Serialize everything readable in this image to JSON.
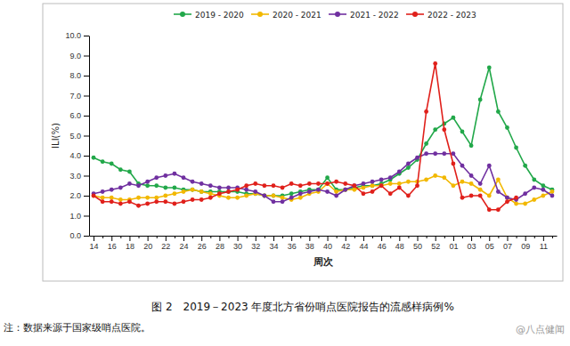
{
  "chart_data": {
    "type": "line",
    "title": "图 2　2019－2023 年度北方省份哨点医院报告的流感样病例%",
    "note": "注：数据来源于国家级哨点医院。",
    "watermark": "@八点健闻",
    "x_label": "周次",
    "y_label": "ILI(%)",
    "categories": [
      "14",
      null,
      "16",
      null,
      "18",
      null,
      "20",
      null,
      "22",
      null,
      "24",
      null,
      "26",
      null,
      "28",
      null,
      "30",
      null,
      "32",
      null,
      "34",
      null,
      "36",
      null,
      "38",
      null,
      "40",
      null,
      "42",
      null,
      "44",
      null,
      "46",
      null,
      "48",
      null,
      "50",
      null,
      "52",
      null,
      "01",
      null,
      "03",
      null,
      "05",
      null,
      "07",
      null,
      "09",
      null,
      "11",
      null
    ],
    "series": [
      {
        "name": "2019 - 2020",
        "color": "#22a84a",
        "marker": "circle",
        "line_style": "solid",
        "values": [
          3.9,
          3.7,
          3.6,
          3.3,
          3.2,
          2.6,
          2.5,
          2.5,
          2.4,
          2.4,
          2.3,
          2.3,
          2.2,
          2.2,
          2.2,
          2.2,
          2.2,
          2.1,
          2.1,
          2.0,
          2.0,
          2.0,
          2.1,
          2.2,
          2.3,
          2.3,
          2.9,
          2.3,
          2.3,
          2.4,
          2.5,
          2.5,
          2.6,
          2.8,
          3.1,
          3.4,
          3.8,
          4.6,
          5.3,
          5.6,
          5.9,
          5.2,
          4.5,
          6.8,
          8.4,
          6.2,
          5.4,
          4.4,
          3.5,
          2.8,
          2.5,
          2.3
        ]
      },
      {
        "name": "2020 - 2021",
        "color": "#f2b800",
        "marker": "circle",
        "line_style": "solid",
        "values": [
          2.0,
          1.9,
          1.9,
          1.8,
          1.8,
          1.9,
          1.9,
          1.9,
          2.0,
          2.1,
          2.2,
          2.3,
          2.2,
          2.1,
          2.0,
          1.9,
          1.9,
          2.0,
          2.1,
          2.0,
          2.0,
          1.9,
          1.8,
          1.9,
          2.1,
          2.2,
          2.6,
          2.2,
          2.3,
          2.3,
          2.4,
          2.5,
          2.5,
          2.6,
          2.6,
          2.7,
          2.7,
          2.8,
          3.0,
          2.9,
          2.5,
          2.7,
          2.6,
          2.3,
          2.0,
          2.8,
          1.9,
          1.6,
          1.6,
          1.8,
          2.0,
          2.2
        ]
      },
      {
        "name": "2021 - 2022",
        "color": "#7030a0",
        "marker": "circle",
        "line_style": "solid",
        "values": [
          2.1,
          2.2,
          2.3,
          2.4,
          2.6,
          2.5,
          2.7,
          2.9,
          3.0,
          3.1,
          2.9,
          2.7,
          2.6,
          2.5,
          2.4,
          2.4,
          2.4,
          2.3,
          2.2,
          2.0,
          1.7,
          1.7,
          1.9,
          2.1,
          2.2,
          2.3,
          2.2,
          2.0,
          2.3,
          2.5,
          2.6,
          2.7,
          2.8,
          2.9,
          3.2,
          3.6,
          3.9,
          4.1,
          4.1,
          4.1,
          4.1,
          3.5,
          3.0,
          2.6,
          3.5,
          2.2,
          1.9,
          1.8,
          2.1,
          2.4,
          2.3,
          2.0
        ]
      },
      {
        "name": "2022 - 2023",
        "color": "#e0201b",
        "marker": "circle",
        "line_style": "solid",
        "values": [
          2.0,
          1.7,
          1.7,
          1.6,
          1.7,
          1.5,
          1.6,
          1.7,
          1.7,
          1.6,
          1.7,
          1.8,
          1.8,
          1.9,
          2.1,
          2.2,
          2.3,
          2.5,
          2.6,
          2.5,
          2.5,
          2.4,
          2.6,
          2.5,
          2.6,
          2.6,
          2.6,
          2.7,
          2.6,
          2.5,
          2.1,
          2.2,
          2.5,
          2.1,
          2.4,
          2.0,
          2.5,
          6.2,
          8.6,
          5.3,
          3.6,
          1.9,
          2.0,
          2.0,
          1.3,
          1.3,
          1.7,
          1.9,
          null,
          null,
          null,
          null
        ]
      }
    ],
    "ylim": [
      0,
      10
    ],
    "yticks": [
      {
        "value": 0,
        "label": "0.0"
      },
      {
        "value": 1,
        "label": "1.0"
      },
      {
        "value": 2,
        "label": "2.0"
      },
      {
        "value": 3,
        "label": "3.0"
      },
      {
        "value": 4,
        "label": "4.0"
      },
      {
        "value": 5,
        "label": "5.0"
      },
      {
        "value": 6,
        "label": "6.0"
      },
      {
        "value": 7,
        "label": "7.0"
      },
      {
        "value": 8,
        "label": "8.0"
      },
      {
        "value": 9,
        "label": "9.0"
      },
      {
        "value": 10,
        "label": "10.0"
      }
    ],
    "grid": false,
    "legend": "top"
  }
}
